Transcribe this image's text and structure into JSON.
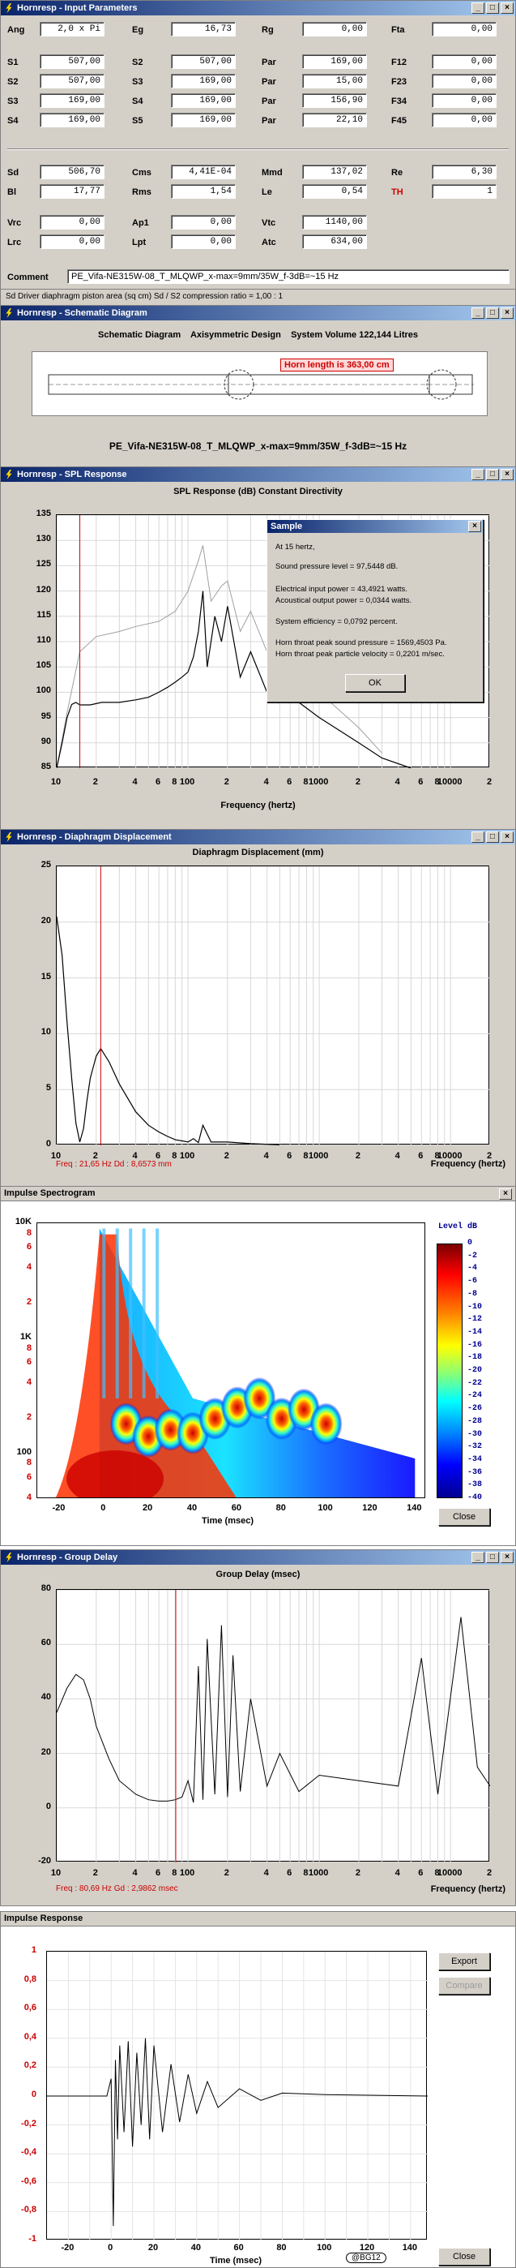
{
  "input_params": {
    "title": "Hornresp - Input Parameters",
    "fields": [
      {
        "label": "Ang",
        "value": "2,0 x Pi"
      },
      {
        "label": "Eg",
        "value": "16,73"
      },
      {
        "label": "Rg",
        "value": "0,00"
      },
      {
        "label": "Fta",
        "value": "0,00"
      },
      {
        "label": "S1",
        "value": "507,00"
      },
      {
        "label": "S2",
        "value": "507,00"
      },
      {
        "label": "Par",
        "value": "169,00"
      },
      {
        "label": "F12",
        "value": "0,00"
      },
      {
        "label": "S2",
        "value": "507,00"
      },
      {
        "label": "S3",
        "value": "169,00"
      },
      {
        "label": "Par",
        "value": "15,00"
      },
      {
        "label": "F23",
        "value": "0,00"
      },
      {
        "label": "S3",
        "value": "169,00"
      },
      {
        "label": "S4",
        "value": "169,00"
      },
      {
        "label": "Par",
        "value": "156,90"
      },
      {
        "label": "F34",
        "value": "0,00"
      },
      {
        "label": "S4",
        "value": "169,00"
      },
      {
        "label": "S5",
        "value": "169,00"
      },
      {
        "label": "Par",
        "value": "22,10"
      },
      {
        "label": "F45",
        "value": "0,00"
      },
      {
        "label": "Sd",
        "value": "506,70"
      },
      {
        "label": "Cms",
        "value": "4,41E-04"
      },
      {
        "label": "Mmd",
        "value": "137,02"
      },
      {
        "label": "Re",
        "value": "6,30"
      },
      {
        "label": "Bl",
        "value": "17,77"
      },
      {
        "label": "Rms",
        "value": "1,54"
      },
      {
        "label": "Le",
        "value": "0,54"
      },
      {
        "label": "TH",
        "value": "1"
      },
      {
        "label": "Vrc",
        "value": "0,00"
      },
      {
        "label": "Ap1",
        "value": "0,00"
      },
      {
        "label": "Vtc",
        "value": "1140,00"
      },
      {
        "label": "Lrc",
        "value": "0,00"
      },
      {
        "label": "Lpt",
        "value": "0,00"
      },
      {
        "label": "Atc",
        "value": "634,00"
      }
    ],
    "comment_label": "Comment",
    "comment_value": "PE_Vifa-NE315W-08_T_MLQWP_x-max=9mm/35W_f-3dB=~15 Hz",
    "status_text": "Sd   Driver diaphragm piston area  (sq cm)    Sd / S2 compression ratio = 1,00 : 1"
  },
  "schematic": {
    "title": "Hornresp - Schematic Diagram",
    "header_left": "Schematic Diagram",
    "header_mid": "Axisymmetric Design",
    "header_right": "System Volume 122,144 Litres",
    "horn_length": "Horn length is 363,00 cm",
    "caption": "PE_Vifa-NE315W-08_T_MLQWP_x-max=9mm/35W_f-3dB=~15 Hz"
  },
  "spl": {
    "title": "Hornresp - SPL Response",
    "chart_title": "SPL Response (dB)     Constant Directivity",
    "xlabel": "Frequency (hertz)",
    "yticks": [
      "135",
      "130",
      "125",
      "120",
      "115",
      "110",
      "105",
      "100",
      "95",
      "90",
      "85"
    ],
    "xticks": [
      "10",
      "2",
      "4",
      "6",
      "8",
      "100",
      "2",
      "4",
      "6",
      "8",
      "1000",
      "2",
      "4",
      "6",
      "8",
      "10000",
      "2"
    ],
    "dialog": {
      "title": "Sample",
      "line1": "At 15 hertz,",
      "line2": "Sound pressure level = 97,5448 dB.",
      "line3": "Electrical input power = 43,4921 watts.",
      "line4": "Acoustical output power = 0,0344 watts.",
      "line5": "System efficiency = 0,0792 percent.",
      "line6": "Horn throat peak sound pressure = 1569,4503 Pa.",
      "line7": "Horn throat peak particle velocity = 0,2201 m/sec.",
      "ok": "OK"
    },
    "chart_data": {
      "type": "line",
      "xlabel": "Frequency (hertz)",
      "ylabel": "SPL Response (dB)",
      "xscale": "log",
      "xlim": [
        10,
        20000
      ],
      "ylim": [
        85,
        135
      ],
      "marker_x": 15,
      "series": [
        {
          "x": [
            10,
            11,
            12,
            13,
            14,
            15,
            18,
            22,
            30,
            40,
            50,
            60,
            70,
            80,
            90,
            100,
            110,
            120,
            130,
            140,
            160,
            180,
            200,
            250,
            300,
            400,
            500,
            700,
            1000,
            2000,
            3000,
            5000
          ],
          "y": [
            85,
            90,
            95,
            97.6,
            98,
            97.5,
            97.5,
            98,
            98,
            98.5,
            99,
            100,
            101,
            102,
            103,
            104,
            107,
            112,
            120,
            105,
            115,
            110,
            117,
            103,
            108,
            100,
            103,
            98,
            95,
            90,
            87,
            85
          ]
        },
        {
          "x": [
            10,
            12,
            15,
            20,
            30,
            40,
            60,
            80,
            100,
            120,
            130,
            150,
            180,
            200,
            250,
            300,
            400,
            600,
            1000,
            2000,
            3000
          ],
          "y": [
            85,
            96,
            108,
            111,
            112,
            113,
            114,
            116,
            120,
            126,
            129,
            118,
            121,
            122,
            112,
            116,
            108,
            104,
            100,
            93,
            88
          ]
        }
      ]
    }
  },
  "displacement": {
    "title": "Hornresp - Diaphragm Displacement",
    "chart_title": "Diaphragm Displacement (mm)",
    "xlabel": "Frequency (hertz)",
    "yticks": [
      "25",
      "20",
      "15",
      "10",
      "5",
      "0"
    ],
    "xticks": [
      "10",
      "2",
      "4",
      "6",
      "8",
      "100",
      "2",
      "4",
      "6",
      "8",
      "1000",
      "2",
      "4",
      "6",
      "8",
      "10000",
      "2"
    ],
    "readout": "Freq : 21,65 Hz     Dd : 8,6573 mm",
    "chart_data": {
      "type": "line",
      "xlabel": "Frequency (hertz)",
      "ylabel": "Diaphragm Displacement (mm)",
      "xscale": "log",
      "xlim": [
        10,
        20000
      ],
      "ylim": [
        0,
        25
      ],
      "marker_x": 21.65,
      "series": [
        {
          "x": [
            10,
            11,
            12,
            13,
            14,
            15,
            16,
            17,
            18,
            20,
            21.65,
            25,
            30,
            40,
            50,
            60,
            70,
            80,
            90,
            100,
            110,
            120,
            130,
            150,
            200,
            300,
            500
          ],
          "y": [
            20.5,
            17,
            11,
            6,
            2,
            0.3,
            1.5,
            4,
            6,
            8,
            8.66,
            7.5,
            5.5,
            3,
            1.8,
            1.2,
            0.8,
            0.5,
            0.4,
            0.3,
            0.6,
            0.25,
            1.8,
            0.3,
            0.3,
            0.15,
            0.05
          ]
        }
      ]
    }
  },
  "spectrogram": {
    "title": "Impulse Spectrogram",
    "legend_title": "Level  dB",
    "legend_ticks": [
      "0",
      "-2",
      "-4",
      "-6",
      "-8",
      "-10",
      "-12",
      "-14",
      "-16",
      "-18",
      "-20",
      "-22",
      "-24",
      "-26",
      "-28",
      "-30",
      "-32",
      "-34",
      "-36",
      "-38",
      "-40"
    ],
    "yticks": [
      "10K",
      "8",
      "6",
      "4",
      "2",
      "1K",
      "8",
      "6",
      "4",
      "2",
      "100",
      "8",
      "6",
      "4"
    ],
    "xticks": [
      "-20",
      "0",
      "20",
      "40",
      "60",
      "80",
      "100",
      "120",
      "140"
    ],
    "xlabel": "Time (msec)",
    "close": "Close",
    "chart_data": {
      "type": "heatmap",
      "xlabel": "Time (msec)",
      "xlim": [
        -30,
        145
      ],
      "yscale": "log",
      "ylim": [
        40,
        10000
      ],
      "zlim": [
        -40,
        0
      ],
      "colorbar": "Level dB"
    }
  },
  "group_delay": {
    "title": "Hornresp - Group Delay",
    "chart_title": "Group Delay (msec)",
    "xlabel": "Frequency (hertz)",
    "yticks": [
      "80",
      "60",
      "40",
      "20",
      "0",
      "-20"
    ],
    "xticks": [
      "10",
      "2",
      "4",
      "6",
      "8",
      "100",
      "2",
      "4",
      "6",
      "8",
      "1000",
      "2",
      "4",
      "6",
      "8",
      "10000",
      "2"
    ],
    "readout": "Freq : 80,69 Hz     Gd : 2,9862 msec",
    "chart_data": {
      "type": "line",
      "xlabel": "Frequency (hertz)",
      "ylabel": "Group Delay (msec)",
      "xscale": "log",
      "xlim": [
        10,
        20000
      ],
      "ylim": [
        -20,
        80
      ],
      "marker_x": 80.69,
      "series": [
        {
          "x": [
            10,
            12,
            14,
            16,
            18,
            20,
            25,
            30,
            40,
            50,
            60,
            70,
            80,
            90,
            100,
            110,
            120,
            130,
            140,
            160,
            180,
            200,
            220,
            250,
            300,
            400,
            500,
            700,
            1000,
            2000,
            4000,
            6000,
            8000,
            12000,
            16000,
            20000
          ],
          "y": [
            35,
            44,
            49,
            47,
            40,
            30,
            18,
            10,
            5,
            3,
            2.5,
            2.5,
            3,
            4,
            10,
            2,
            52,
            3,
            62,
            5,
            67,
            4,
            56,
            6,
            40,
            8,
            20,
            6,
            12,
            10,
            8,
            55,
            5,
            70,
            15,
            8
          ]
        }
      ]
    }
  },
  "impulse": {
    "title": "Impulse Response",
    "yticks": [
      "1",
      "0,8",
      "0,6",
      "0,4",
      "0,2",
      "0",
      "-0,2",
      "-0,4",
      "-0,6",
      "-0,8",
      "-1"
    ],
    "xticks": [
      "-20",
      "0",
      "20",
      "40",
      "60",
      "80",
      "100",
      "120",
      "140"
    ],
    "xlabel": "Time (msec)",
    "export": "Export",
    "compare": "Compare",
    "close": "Close",
    "badge": "@BG12",
    "chart_data": {
      "type": "line",
      "xlabel": "Time (msec)",
      "xlim": [
        -30,
        148
      ],
      "ylim": [
        -1,
        1
      ],
      "series": [
        {
          "x": [
            -30,
            -2,
            0,
            1,
            2,
            3,
            4,
            6,
            8,
            10,
            12,
            14,
            16,
            18,
            20,
            24,
            28,
            32,
            36,
            40,
            45,
            50,
            60,
            70,
            80,
            100,
            148
          ],
          "y": [
            0,
            0,
            0.12,
            -0.9,
            0.25,
            -0.3,
            0.35,
            -0.25,
            0.38,
            -0.35,
            0.3,
            -0.2,
            0.4,
            -0.3,
            0.35,
            -0.25,
            0.22,
            -0.18,
            0.15,
            -0.12,
            0.1,
            -0.08,
            0.05,
            -0.03,
            0.02,
            0.01,
            0
          ]
        }
      ]
    }
  }
}
